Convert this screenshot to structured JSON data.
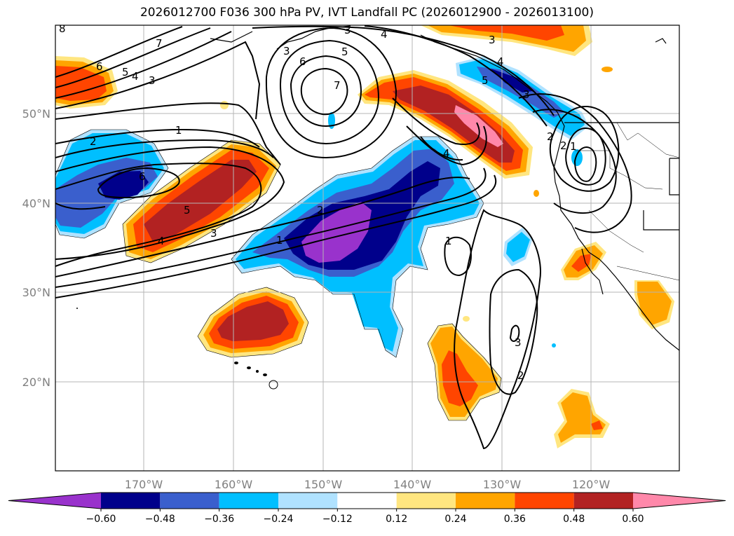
{
  "title": "2026012700 F036 300 hPa PV, IVT Landfall PC (2026012900 - 2026013100)",
  "lon_labels": [
    "170°W",
    "160°W",
    "150°W",
    "140°W",
    "130°W",
    "120°W"
  ],
  "lat_labels": [
    "50°N",
    "40°N",
    "30°N",
    "20°N"
  ],
  "colorbar": {
    "colors": [
      "#9932cc",
      "#00008b",
      "#3a5fcd",
      "#00bfff",
      "#b0e2ff",
      "#ffffff",
      "#ffe680",
      "#ffa500",
      "#ff4500",
      "#b22222",
      "#ff88aa"
    ],
    "tick_labels": [
      "−0.60",
      "−0.48",
      "−0.36",
      "−0.24",
      "−0.12",
      "0.12",
      "0.24",
      "0.36",
      "0.48",
      "0.60"
    ]
  },
  "pv_contour_labels": [
    "8",
    "7",
    "6",
    "5",
    "4",
    "3",
    "2",
    "1",
    "3",
    "4",
    "5",
    "6",
    "7",
    "3",
    "3",
    "4",
    "5",
    "6",
    "5",
    "4",
    "3",
    "1",
    "2",
    "1",
    "2",
    "3",
    "4",
    "3",
    "2",
    "1",
    "2"
  ]
}
